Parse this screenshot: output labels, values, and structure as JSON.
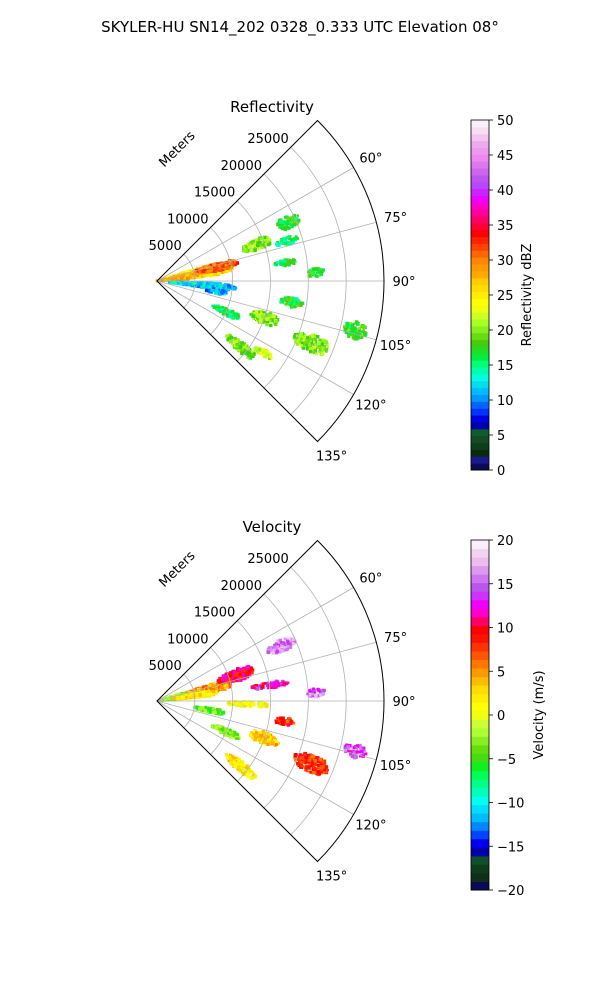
{
  "figure": {
    "suptitle": "SKYLER-HU  SN14_202  0328_0.333 UTC Elevation 08°"
  },
  "chart_data": [
    {
      "type": "heatmap",
      "subtype": "polar-sector-radar",
      "title": "Reflectivity",
      "radial_label": "Meters",
      "radial_ticks": [
        5000,
        10000,
        15000,
        20000,
        25000
      ],
      "radial_tick_labels": [
        "5000",
        "10000",
        "15000",
        "20000",
        "25000"
      ],
      "rlim": [
        0,
        30000
      ],
      "theta_ticks": [
        60,
        75,
        90,
        105,
        120,
        135
      ],
      "theta_tick_labels": [
        "60°",
        "75°",
        "90°",
        "105°",
        "120°",
        "135°"
      ],
      "theta_range": [
        45,
        135
      ],
      "grid": true,
      "colorbar": {
        "label": "Reflectivity dBZ",
        "range": [
          0,
          50
        ],
        "ticks": [
          "0",
          "5",
          "10",
          "15",
          "20",
          "25",
          "30",
          "35",
          "40",
          "45",
          "50"
        ],
        "colors": [
          "#0a0a55",
          "#1a1a8c",
          "#0a2a10",
          "#0d3d1a",
          "#144a24",
          "#0f5a2e",
          "#0000aa",
          "#0000dd",
          "#0033ff",
          "#0066ff",
          "#0099ff",
          "#00bbff",
          "#00ddee",
          "#00ffdd",
          "#00ffaa",
          "#00ff77",
          "#00ee44",
          "#22dd22",
          "#44cc11",
          "#66dd11",
          "#88ee22",
          "#aaff22",
          "#ccff22",
          "#eeff11",
          "#ffff00",
          "#ffee00",
          "#ffdd00",
          "#ffcc00",
          "#ffaa00",
          "#ff9900",
          "#ff8800",
          "#ff6600",
          "#ff4400",
          "#ff2200",
          "#ff0000",
          "#ff0033",
          "#ff0066",
          "#ff0099",
          "#ff00cc",
          "#ee00ff",
          "#cc22ff",
          "#bb44ff",
          "#bb55ee",
          "#cc66ee",
          "#dd77ee",
          "#ee88ee",
          "#ee99ee",
          "#eeaaee",
          "#f3c6f0",
          "#f8ddf5",
          "#fbeefb"
        ]
      },
      "echoes": [
        {
          "az": 79,
          "r": 5000,
          "dr": 11000,
          "daz": 12,
          "v": 26
        },
        {
          "az": 77,
          "r": 8000,
          "dr": 6000,
          "daz": 7,
          "v": 31
        },
        {
          "az": 82,
          "r": 3000,
          "dr": 5000,
          "daz": 8,
          "v": 28
        },
        {
          "az": 70,
          "r": 14000,
          "dr": 4000,
          "daz": 6,
          "v": 20
        },
        {
          "az": 66,
          "r": 19000,
          "dr": 3500,
          "daz": 5,
          "v": 17
        },
        {
          "az": 73,
          "r": 18000,
          "dr": 3000,
          "daz": 3,
          "v": 16
        },
        {
          "az": 82,
          "r": 17000,
          "dr": 3000,
          "daz": 3,
          "v": 16
        },
        {
          "az": 87,
          "r": 21000,
          "dr": 2500,
          "daz": 3,
          "v": 17
        },
        {
          "az": 95,
          "r": 6000,
          "dr": 9000,
          "daz": 6,
          "v": 12
        },
        {
          "az": 100,
          "r": 8000,
          "dr": 3000,
          "daz": 4,
          "v": 11
        },
        {
          "az": 99,
          "r": 18000,
          "dr": 3000,
          "daz": 4,
          "v": 17
        },
        {
          "az": 109,
          "r": 15000,
          "dr": 4000,
          "daz": 6,
          "v": 20
        },
        {
          "az": 114,
          "r": 10000,
          "dr": 4000,
          "daz": 5,
          "v": 16
        },
        {
          "az": 128,
          "r": 14000,
          "dr": 5000,
          "daz": 5,
          "v": 20
        },
        {
          "az": 112,
          "r": 22000,
          "dr": 5000,
          "daz": 6,
          "v": 20
        },
        {
          "az": 104,
          "r": 27000,
          "dr": 3000,
          "daz": 5,
          "v": 18
        },
        {
          "az": 124,
          "r": 17000,
          "dr": 3000,
          "daz": 3,
          "v": 22
        }
      ]
    },
    {
      "type": "heatmap",
      "subtype": "polar-sector-radar",
      "title": "Velocity",
      "radial_label": "Meters",
      "radial_ticks": [
        5000,
        10000,
        15000,
        20000,
        25000
      ],
      "radial_tick_labels": [
        "5000",
        "10000",
        "15000",
        "20000",
        "25000"
      ],
      "rlim": [
        0,
        30000
      ],
      "theta_ticks": [
        60,
        75,
        90,
        105,
        120,
        135
      ],
      "theta_tick_labels": [
        "60°",
        "75°",
        "90°",
        "105°",
        "120°",
        "135°"
      ],
      "theta_range": [
        45,
        135
      ],
      "grid": true,
      "colorbar": {
        "label": "Velocity (m/s)",
        "range": [
          -20,
          20
        ],
        "ticks": [
          "−20",
          "−15",
          "−10",
          "−5",
          "0",
          "5",
          "10",
          "15",
          "20"
        ],
        "colors": [
          "#0a0a55",
          "#0f2f1a",
          "#0d3d1a",
          "#0f4f2a",
          "#0000aa",
          "#0000ee",
          "#0044ff",
          "#0088ff",
          "#00bbff",
          "#00ddff",
          "#00ffee",
          "#00ffbb",
          "#00ff88",
          "#00ff55",
          "#11ee22",
          "#44dd11",
          "#66dd11",
          "#88ee22",
          "#aaff33",
          "#ccff33",
          "#eeff11",
          "#ffff00",
          "#ffee00",
          "#ffdd00",
          "#ffbb00",
          "#ff9900",
          "#ff7700",
          "#ff5500",
          "#ff3300",
          "#ff1100",
          "#ff0000",
          "#ff0066",
          "#ff00cc",
          "#ee00ff",
          "#cc33ff",
          "#bb55ee",
          "#cc77ee",
          "#dd99ee",
          "#eebbee",
          "#f3d3f0",
          "#fbeefb"
        ]
      },
      "echoes": [
        {
          "az": 79,
          "r": 3000,
          "dr": 5000,
          "daz": 12,
          "v": -3
        },
        {
          "az": 77,
          "r": 7000,
          "dr": 6000,
          "daz": 8,
          "v": 5
        },
        {
          "az": 82,
          "r": 5000,
          "dr": 6000,
          "daz": 6,
          "v": 2
        },
        {
          "az": 72,
          "r": 11000,
          "dr": 5000,
          "daz": 8,
          "v": 10
        },
        {
          "az": 66,
          "r": 18000,
          "dr": 4000,
          "daz": 5,
          "v": 16
        },
        {
          "az": 82,
          "r": 15000,
          "dr": 5000,
          "daz": 3,
          "v": 12
        },
        {
          "az": 87,
          "r": 21000,
          "dr": 2500,
          "daz": 3,
          "v": 15
        },
        {
          "az": 92,
          "r": 12000,
          "dr": 6000,
          "daz": 3,
          "v": 1
        },
        {
          "az": 100,
          "r": 7000,
          "dr": 4000,
          "daz": 5,
          "v": -4
        },
        {
          "az": 99,
          "r": 17000,
          "dr": 3000,
          "daz": 3,
          "v": 8
        },
        {
          "az": 109,
          "r": 15000,
          "dr": 4000,
          "daz": 6,
          "v": 3
        },
        {
          "az": 114,
          "r": 10000,
          "dr": 4000,
          "daz": 5,
          "v": -3
        },
        {
          "az": 128,
          "r": 14000,
          "dr": 5000,
          "daz": 5,
          "v": 2
        },
        {
          "az": 112,
          "r": 22000,
          "dr": 5000,
          "daz": 6,
          "v": 8
        },
        {
          "az": 104,
          "r": 27000,
          "dr": 3000,
          "daz": 4,
          "v": 14
        }
      ]
    }
  ]
}
